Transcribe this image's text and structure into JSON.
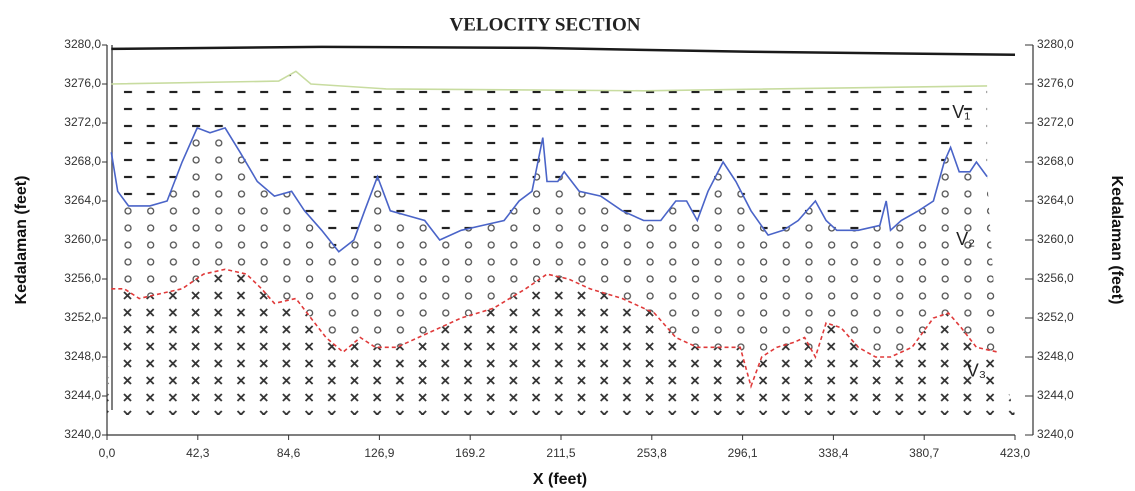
{
  "chart_data": {
    "type": "line",
    "title": "VELOCITY SECTION",
    "x_label": "X (feet)",
    "y_label": "Kedalaman (feet)",
    "y2_label": "Kedalaman (feet)",
    "xlim": [
      0,
      423
    ],
    "ylim": [
      3240,
      3280
    ],
    "y2lim": [
      3240,
      3280
    ],
    "xticks": [
      {
        "value": 0,
        "label": "0,0"
      },
      {
        "value": 42.3,
        "label": "42,3"
      },
      {
        "value": 84.6,
        "label": "84,6"
      },
      {
        "value": 126.9,
        "label": "126,9"
      },
      {
        "value": 169.2,
        "label": "169.2"
      },
      {
        "value": 211.5,
        "label": "211,5"
      },
      {
        "value": 253.8,
        "label": "253,8"
      },
      {
        "value": 296.1,
        "label": "296,1"
      },
      {
        "value": 338.4,
        "label": "338,4"
      },
      {
        "value": 380.7,
        "label": "380,7"
      },
      {
        "value": 423,
        "label": "423,0"
      }
    ],
    "yticks": [
      {
        "value": 3240,
        "label": "3240,0"
      },
      {
        "value": 3244,
        "label": "3244,0"
      },
      {
        "value": 3248,
        "label": "3248,0"
      },
      {
        "value": 3252,
        "label": "3252,0"
      },
      {
        "value": 3256,
        "label": "3256,0"
      },
      {
        "value": 3260,
        "label": "3260,0"
      },
      {
        "value": 3264,
        "label": "3264,0"
      },
      {
        "value": 3268,
        "label": "3268,0"
      },
      {
        "value": 3272,
        "label": "3272,0"
      },
      {
        "value": 3276,
        "label": "3276,0"
      },
      {
        "value": 3280,
        "label": "3280,0"
      }
    ],
    "y2ticks": [
      {
        "value": 3240,
        "label": "3240,0"
      },
      {
        "value": 3244,
        "label": "3244,0"
      },
      {
        "value": 3248,
        "label": "3248,0"
      },
      {
        "value": 3252,
        "label": "3252,0"
      },
      {
        "value": 3256,
        "label": "3256,0"
      },
      {
        "value": 3260,
        "label": "3260,0"
      },
      {
        "value": 3264,
        "label": "3264,0"
      },
      {
        "value": 3268,
        "label": "3268,0"
      },
      {
        "value": 3272,
        "label": "3272,0"
      },
      {
        "value": 3276,
        "label": "3276,0"
      },
      {
        "value": 3280,
        "label": "3280,0"
      }
    ],
    "series": [
      {
        "color": "#1a1a1a",
        "x": [
          2,
          100,
          200,
          300,
          423
        ],
        "values": [
          3279.6,
          3279.8,
          3279.7,
          3279.3,
          3279.0
        ]
      },
      {
        "color": "#c8dca0",
        "x": [
          2,
          80,
          88,
          95,
          130,
          250,
          410
        ],
        "values": [
          3276,
          3276.3,
          3277.3,
          3276,
          3275.5,
          3275.3,
          3275.8
        ]
      },
      {
        "color": "#4a64c8",
        "x": [
          2,
          5,
          10,
          20,
          28,
          35,
          42,
          48,
          55,
          62,
          70,
          78,
          86,
          92,
          100,
          108,
          115,
          120,
          126,
          132,
          140,
          148,
          155,
          165,
          175,
          185,
          192,
          198,
          203,
          205,
          210,
          213,
          220,
          230,
          240,
          250,
          258,
          265,
          270,
          275,
          280,
          287,
          293,
          300,
          308,
          315,
          322,
          330,
          335,
          340,
          350,
          360,
          363,
          365,
          370,
          378,
          385,
          390,
          393,
          397,
          402,
          405,
          410
        ],
        "values": [
          3269,
          3265,
          3263.5,
          3263.5,
          3264,
          3268,
          3271.5,
          3271,
          3271.5,
          3269,
          3266,
          3264.5,
          3265,
          3263,
          3261,
          3258.8,
          3260,
          3263,
          3266.5,
          3263,
          3262.5,
          3262,
          3260,
          3261,
          3261.5,
          3262,
          3264,
          3265,
          3270.5,
          3266,
          3266,
          3267,
          3265,
          3264.5,
          3263,
          3262,
          3262,
          3264,
          3264,
          3262,
          3265,
          3268,
          3266,
          3263,
          3260.5,
          3261,
          3262,
          3264,
          3262,
          3261,
          3261,
          3261.5,
          3264,
          3261,
          3262,
          3263,
          3264,
          3268,
          3269.5,
          3267,
          3267,
          3268,
          3266.5
        ]
      },
      {
        "color": "#e03a3a",
        "dash": true,
        "x": [
          2,
          8,
          15,
          25,
          35,
          45,
          55,
          65,
          72,
          78,
          88,
          95,
          102,
          110,
          118,
          125,
          135,
          145,
          155,
          165,
          180,
          195,
          205,
          215,
          225,
          240,
          255,
          265,
          275,
          285,
          295,
          300,
          305,
          312,
          320,
          325,
          330,
          335,
          342,
          350,
          358,
          365,
          375,
          385,
          392,
          398,
          405,
          415
        ],
        "values": [
          3255,
          3255,
          3254,
          3254.5,
          3255,
          3256.5,
          3257,
          3256.5,
          3255,
          3253.5,
          3254,
          3252,
          3250,
          3248.5,
          3250,
          3249,
          3249,
          3250,
          3251,
          3252,
          3253,
          3255,
          3256.5,
          3256,
          3255,
          3254,
          3252.5,
          3250,
          3249,
          3249,
          3249,
          3245,
          3248,
          3249,
          3249.5,
          3250,
          3248,
          3251.5,
          3251,
          3249,
          3248,
          3248,
          3249,
          3252,
          3252.5,
          3251,
          3249,
          3248.5
        ]
      }
    ],
    "annotations": [
      {
        "text": "V₁",
        "x": 398,
        "y": 3273
      },
      {
        "text": "V₂",
        "x": 400,
        "y": 3260
      },
      {
        "text": "V₃",
        "x": 405,
        "y": 3246.5
      }
    ]
  }
}
